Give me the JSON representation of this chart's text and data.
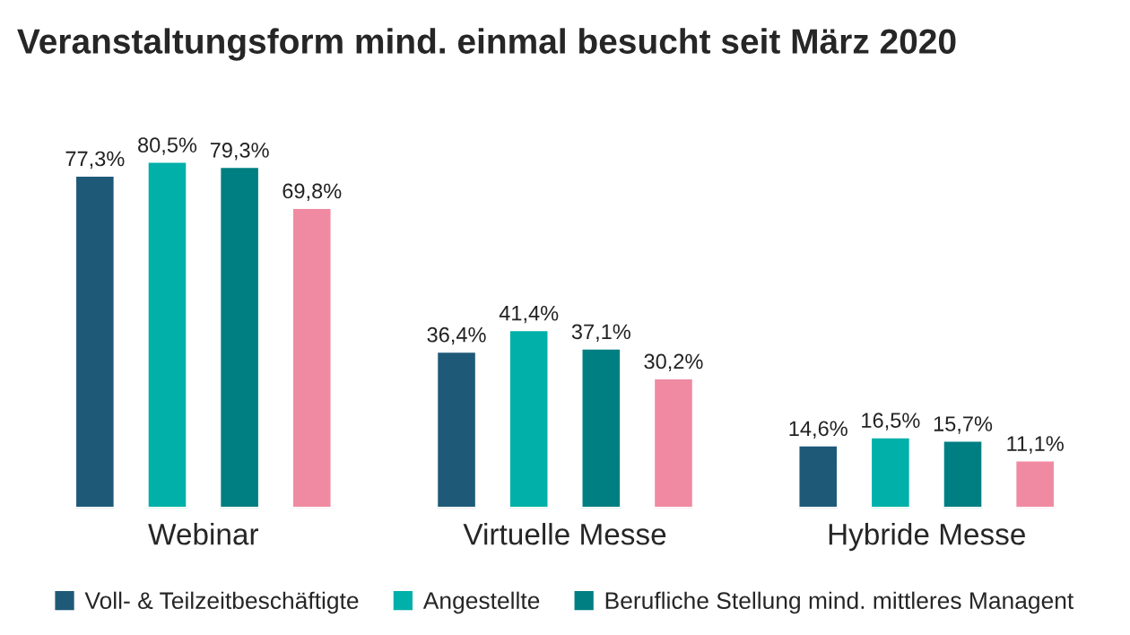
{
  "chart_data": {
    "type": "bar",
    "title": "Veranstaltungsform mind. einmal besucht seit März 2020",
    "categories": [
      "Webinar",
      "Virtuelle Messe",
      "Hybride Messe"
    ],
    "series": [
      {
        "name": "Voll- & Teilzeitbeschäftigte",
        "color": "#1e5a78",
        "values": [
          77.3,
          36.4,
          14.6
        ],
        "value_labels": [
          "77,3%",
          "36,4%",
          "14,6%"
        ]
      },
      {
        "name": "Angestellte",
        "color": "#00b0a9",
        "values": [
          80.5,
          41.4,
          16.5
        ],
        "value_labels": [
          "80,5%",
          "41,4%",
          "16,5%"
        ]
      },
      {
        "name": "Berufliche Stellung mind. mittleres Managent",
        "color": "#007f82",
        "values": [
          79.3,
          37.1,
          15.7
        ],
        "value_labels": [
          "79,3%",
          "37,1%",
          "15,7%"
        ]
      },
      {
        "color": "#f08aa2",
        "values": [
          69.8,
          30.2,
          11.1
        ],
        "value_labels": [
          "69,8%",
          "30,2%",
          "11,1%"
        ]
      }
    ],
    "legend": "bottom",
    "grid": false
  }
}
